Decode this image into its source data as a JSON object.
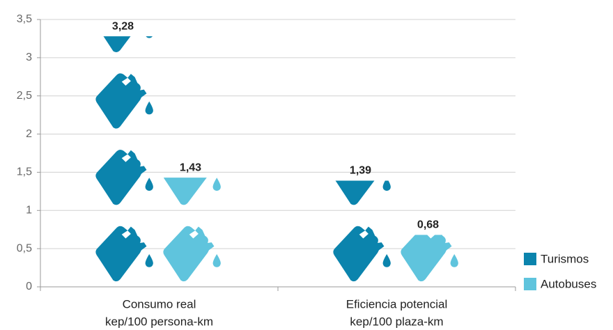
{
  "chart_data": {
    "type": "pictograph",
    "categories": [
      [
        "Consumo real",
        "kep/100 persona-km"
      ],
      [
        "Eficiencia potencial",
        "kep/100 plaza-km"
      ]
    ],
    "series": [
      {
        "name": "Turismos",
        "color": "#0b84ad",
        "values": [
          3.28,
          1.39
        ],
        "value_labels": [
          "3,28",
          "1,39"
        ]
      },
      {
        "name": "Autobuses",
        "color": "#5fc4dd",
        "values": [
          1.43,
          0.68
        ],
        "value_labels": [
          "1,43",
          "0,68"
        ]
      }
    ],
    "ylim": [
      0,
      3.5
    ],
    "yticks": [
      0,
      {
        "value": 0.5,
        "label": "0,5"
      },
      1,
      {
        "value": 1.5,
        "label": "1,5"
      },
      2,
      {
        "value": 2.5,
        "label": "2,5"
      },
      3,
      {
        "value": 3.5,
        "label": "3,5"
      }
    ],
    "grid": true,
    "legend": "right"
  }
}
